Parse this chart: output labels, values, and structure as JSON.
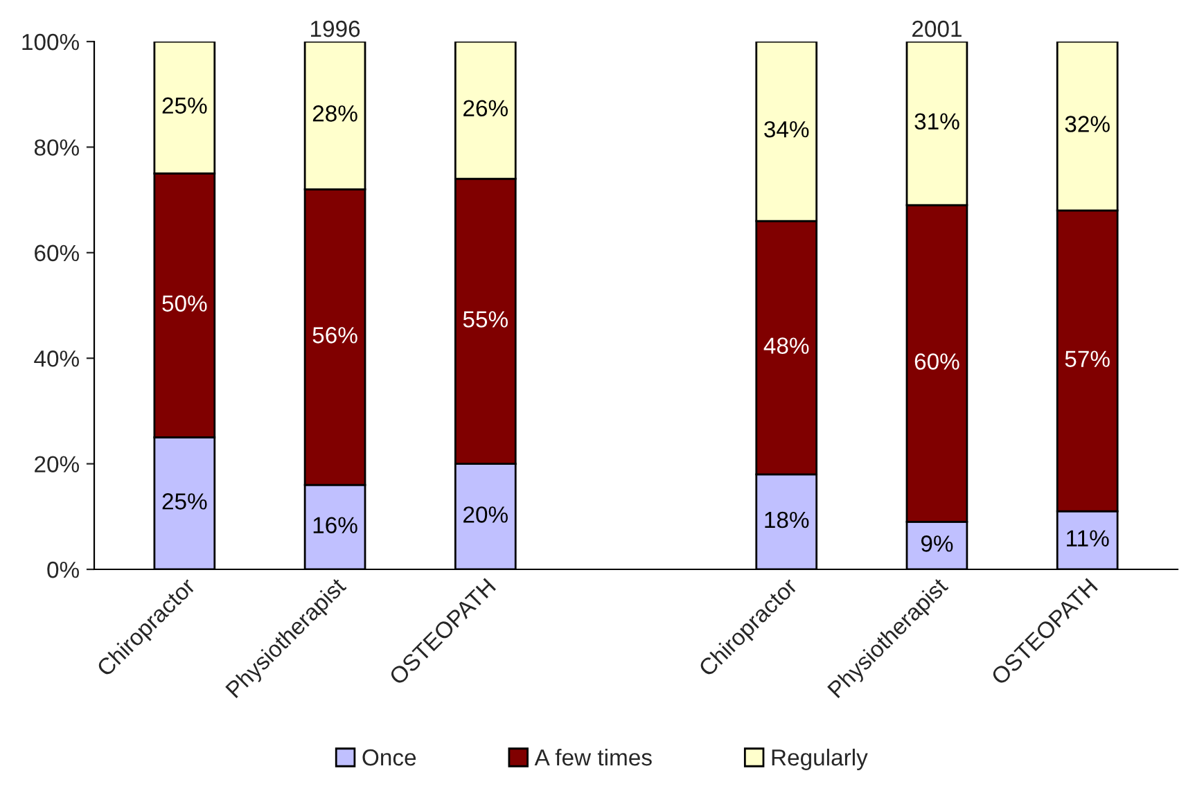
{
  "chart_data": {
    "type": "bar",
    "stacked": true,
    "categories": [
      "Chiropractor",
      "Physiotherapist",
      "OSTEOPATH",
      null,
      "Chiropractor",
      "Physiotherapist",
      "OSTEOPATH"
    ],
    "series": [
      {
        "name": "Once",
        "color": "#c0c0ff",
        "values": [
          25,
          16,
          20,
          null,
          18,
          9,
          11
        ]
      },
      {
        "name": "A few times",
        "color": "#800000",
        "values": [
          50,
          56,
          54,
          null,
          48,
          60,
          57
        ]
      },
      {
        "name": "Regularly",
        "color": "#ffffcc",
        "values": [
          25,
          28,
          26,
          null,
          34,
          31,
          32
        ]
      }
    ],
    "ylim": [
      0,
      100
    ],
    "yticks": [
      {
        "value": 0,
        "label": "0%"
      },
      {
        "value": 20,
        "label": "20%"
      },
      {
        "value": 40,
        "label": "40%"
      },
      {
        "value": 60,
        "label": "60%"
      },
      {
        "value": 80,
        "label": "80%"
      },
      {
        "value": 100,
        "label": "100%"
      }
    ],
    "value_labels": [
      [
        "25%",
        "16%",
        "20%",
        null,
        "18%",
        "9%",
        "11%"
      ],
      [
        "50%",
        "56%",
        "55%",
        null,
        "48%",
        "60%",
        "57%"
      ],
      [
        "25%",
        "28%",
        "26%",
        null,
        "34%",
        "31%",
        "32%"
      ]
    ],
    "annotations": [
      "1996",
      "2001"
    ],
    "legend": "bottom",
    "grid": false
  }
}
